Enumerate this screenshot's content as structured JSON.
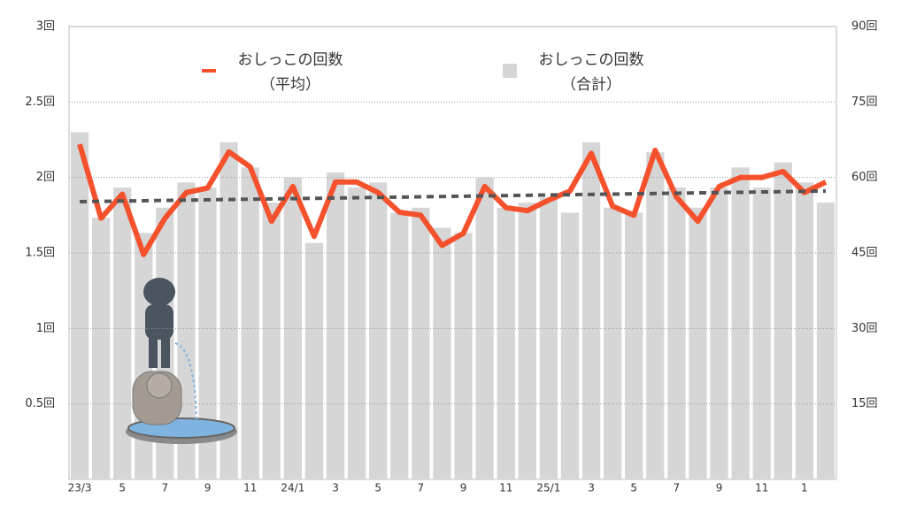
{
  "chart_data": {
    "type": "bar-line",
    "categories": [
      "23/3",
      null,
      "5",
      null,
      "7",
      null,
      "9",
      null,
      "11",
      null,
      "24/1",
      null,
      "3",
      null,
      "5",
      null,
      "7",
      null,
      "9",
      null,
      "11",
      null,
      "25/1",
      null,
      "3",
      null,
      "5",
      null,
      "7",
      null,
      "9",
      null,
      "11",
      null,
      "1",
      null
    ],
    "series": [
      {
        "name": [
          "おしっこの回数",
          "（平均）"
        ],
        "type": "line",
        "axis": "y",
        "color": "#f4512c",
        "values": [
          2.22,
          1.73,
          1.89,
          1.49,
          1.73,
          1.9,
          1.93,
          2.17,
          2.07,
          1.71,
          1.94,
          1.61,
          1.97,
          1.97,
          1.9,
          1.77,
          1.75,
          1.55,
          1.63,
          1.94,
          1.8,
          1.78,
          1.85,
          1.91,
          2.16,
          1.81,
          1.75,
          2.18,
          1.87,
          1.71,
          1.94,
          2.0,
          2.0,
          2.04,
          1.9,
          1.97
        ]
      },
      {
        "name": [
          "おしっこの回数",
          "（合計）"
        ],
        "type": "bar",
        "axis": "y2",
        "color": "#d6d6d6",
        "values": [
          69,
          52,
          58,
          49,
          54,
          59,
          58,
          67,
          62,
          55,
          60,
          47,
          61,
          58,
          59,
          53,
          54,
          50,
          49,
          60,
          54,
          55,
          56,
          53,
          67,
          54,
          53,
          65,
          58,
          54,
          58,
          62,
          58,
          63,
          59,
          55
        ]
      }
    ],
    "trendline": {
      "start": 1.84,
      "end": 1.91,
      "color": "#555555"
    },
    "ylim": [
      0,
      3
    ],
    "yticks": [
      {
        "value": 0.5,
        "label": "0.5回"
      },
      {
        "value": 1,
        "label": "1回"
      },
      {
        "value": 1.5,
        "label": "1.5回"
      },
      {
        "value": 2,
        "label": "2回"
      },
      {
        "value": 2.5,
        "label": "2.5回"
      },
      {
        "value": 3,
        "label": "3回"
      }
    ],
    "y2lim": [
      0,
      90
    ],
    "y2ticks": [
      {
        "value": 15,
        "label": "15回"
      },
      {
        "value": 30,
        "label": "30回"
      },
      {
        "value": 45,
        "label": "45回"
      },
      {
        "value": 60,
        "label": "60回"
      },
      {
        "value": 75,
        "label": "75回"
      },
      {
        "value": 90,
        "label": "90回"
      }
    ],
    "grid": true
  }
}
